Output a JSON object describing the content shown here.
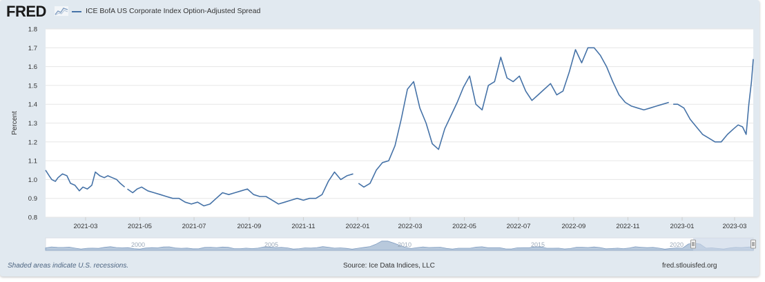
{
  "header": {
    "logo_text": "FRED",
    "legend_label": "ICE BofA US Corporate Index Option-Adjusted Spread",
    "legend_color": "#4572a7"
  },
  "footer": {
    "recessions_note": "Shaded areas indicate U.S. recessions.",
    "source": "Source: Ice Data Indices, LLC",
    "url": "fred.stlouisfed.org"
  },
  "navigator": {
    "tick_labels": [
      "2000",
      "2005",
      "2010",
      "2015",
      "2020"
    ]
  },
  "chart_data": {
    "type": "line",
    "title": "",
    "xlabel": "",
    "ylabel": "Percent",
    "ylim": [
      0.8,
      1.8
    ],
    "xlim": [
      "2021-01-15",
      "2023-03-22"
    ],
    "yticks": [
      0.8,
      0.9,
      1.0,
      1.1,
      1.2,
      1.3,
      1.4,
      1.5,
      1.6,
      1.7,
      1.8
    ],
    "xtick_labels": [
      "2021-03",
      "2021-05",
      "2021-07",
      "2021-09",
      "2021-11",
      "2022-01",
      "2022-03",
      "2022-05",
      "2022-07",
      "2022-09",
      "2022-11",
      "2023-01",
      "2023-03"
    ],
    "grid": true,
    "legend": "top-left",
    "series_color": "#4572a7",
    "series": [
      {
        "name": "ICE BofA US Corporate Index Option-Adjusted Spread",
        "segments": [
          {
            "x": [
              "2021-01-15",
              "2021-01-19",
              "2021-01-22",
              "2021-01-26",
              "2021-01-29",
              "2021-02-03",
              "2021-02-08",
              "2021-02-12",
              "2021-02-17",
              "2021-02-22",
              "2021-02-26",
              "2021-03-03",
              "2021-03-08",
              "2021-03-12",
              "2021-03-17",
              "2021-03-22",
              "2021-03-26",
              "2021-03-31",
              "2021-04-05",
              "2021-04-09",
              "2021-04-14"
            ],
            "y": [
              1.05,
              1.02,
              1.0,
              0.99,
              1.01,
              1.03,
              1.02,
              0.98,
              0.97,
              0.94,
              0.96,
              0.95,
              0.97,
              1.04,
              1.02,
              1.01,
              1.02,
              1.01,
              1.0,
              0.98,
              0.96
            ]
          },
          {
            "x": [
              "2021-04-17",
              "2021-04-23",
              "2021-04-28",
              "2021-05-03",
              "2021-05-10",
              "2021-05-17",
              "2021-05-24",
              "2021-05-31",
              "2021-06-07",
              "2021-06-14",
              "2021-06-21",
              "2021-06-28",
              "2021-07-05",
              "2021-07-12",
              "2021-07-19",
              "2021-07-26",
              "2021-08-02",
              "2021-08-09",
              "2021-08-16",
              "2021-08-23",
              "2021-08-30",
              "2021-09-06",
              "2021-09-13",
              "2021-09-20",
              "2021-09-27",
              "2021-10-04",
              "2021-10-11",
              "2021-10-18",
              "2021-10-25",
              "2021-11-01",
              "2021-11-08",
              "2021-11-15",
              "2021-11-22",
              "2021-11-29",
              "2021-12-06",
              "2021-12-13",
              "2021-12-20",
              "2021-12-27"
            ],
            "y": [
              0.95,
              0.93,
              0.95,
              0.96,
              0.94,
              0.93,
              0.92,
              0.91,
              0.9,
              0.9,
              0.88,
              0.87,
              0.88,
              0.86,
              0.87,
              0.9,
              0.93,
              0.92,
              0.93,
              0.94,
              0.95,
              0.92,
              0.91,
              0.91,
              0.89,
              0.87,
              0.88,
              0.89,
              0.9,
              0.89,
              0.9,
              0.9,
              0.92,
              0.99,
              1.04,
              1.0,
              1.02,
              1.03
            ]
          },
          {
            "x": [
              "2022-01-02",
              "2022-01-08",
              "2022-01-15",
              "2022-01-22",
              "2022-01-29",
              "2022-02-05",
              "2022-02-12",
              "2022-02-19",
              "2022-02-26",
              "2022-03-05",
              "2022-03-12",
              "2022-03-19",
              "2022-03-26",
              "2022-04-02",
              "2022-04-09",
              "2022-04-16",
              "2022-04-23",
              "2022-04-30",
              "2022-05-07",
              "2022-05-14",
              "2022-05-21",
              "2022-05-28",
              "2022-06-04",
              "2022-06-11",
              "2022-06-18",
              "2022-06-25",
              "2022-07-02",
              "2022-07-09",
              "2022-07-16",
              "2022-07-23",
              "2022-07-30",
              "2022-08-06",
              "2022-08-13",
              "2022-08-20",
              "2022-08-27",
              "2022-09-03",
              "2022-09-10",
              "2022-09-17",
              "2022-09-24",
              "2022-10-01",
              "2022-10-08",
              "2022-10-15",
              "2022-10-22",
              "2022-10-29",
              "2022-11-05",
              "2022-11-12",
              "2022-11-19",
              "2022-11-26",
              "2022-12-03",
              "2022-12-10",
              "2022-12-17"
            ],
            "y": [
              0.98,
              0.96,
              0.98,
              1.05,
              1.09,
              1.1,
              1.18,
              1.32,
              1.48,
              1.52,
              1.38,
              1.3,
              1.19,
              1.16,
              1.27,
              1.34,
              1.41,
              1.49,
              1.55,
              1.4,
              1.37,
              1.5,
              1.52,
              1.65,
              1.54,
              1.52,
              1.55,
              1.47,
              1.42,
              1.45,
              1.48,
              1.51,
              1.45,
              1.47,
              1.57,
              1.69,
              1.62,
              1.7,
              1.7,
              1.66,
              1.6,
              1.52,
              1.45,
              1.41,
              1.39,
              1.38,
              1.37,
              1.38,
              1.39,
              1.4,
              1.41
            ]
          },
          {
            "x": [
              "2022-12-22",
              "2022-12-27",
              "2023-01-03",
              "2023-01-10",
              "2023-01-17",
              "2023-01-24",
              "2023-01-31",
              "2023-02-07",
              "2023-02-14",
              "2023-02-21",
              "2023-02-28",
              "2023-03-05",
              "2023-03-10",
              "2023-03-14",
              "2023-03-17",
              "2023-03-20",
              "2023-03-22"
            ],
            "y": [
              1.4,
              1.4,
              1.38,
              1.32,
              1.28,
              1.24,
              1.22,
              1.2,
              1.2,
              1.24,
              1.27,
              1.29,
              1.28,
              1.24,
              1.4,
              1.52,
              1.64
            ]
          }
        ]
      }
    ]
  }
}
